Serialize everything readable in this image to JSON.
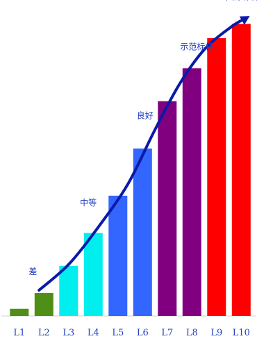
{
  "chart_data": {
    "type": "bar",
    "categories": [
      "L1",
      "L2",
      "L3",
      "L4",
      "L5",
      "L6",
      "L7",
      "L8",
      "L9",
      "L10"
    ],
    "values": [
      0.25,
      0.8,
      1.75,
      2.9,
      4.2,
      5.85,
      7.5,
      8.65,
      9.7,
      10.2
    ],
    "colors": [
      "#4f8f18",
      "#4f8f18",
      "#00eeee",
      "#00eeee",
      "#3366ff",
      "#3366ff",
      "#800080",
      "#800080",
      "#ff0000",
      "#ff0000"
    ],
    "ylim": [
      0,
      10.5
    ],
    "trend": {
      "color": "#0a1aa8",
      "points": [
        [
          0.8,
          0.9
        ],
        [
          2.0,
          1.8
        ],
        [
          3.2,
          3.1
        ],
        [
          4.4,
          4.6
        ],
        [
          5.5,
          6.5
        ],
        [
          6.5,
          8.1
        ],
        [
          7.5,
          9.3
        ],
        [
          8.6,
          10.1
        ],
        [
          9.2,
          10.4
        ]
      ],
      "arrow": true
    },
    "annotations": [
      {
        "text": "差",
        "x": 0.55,
        "y": 1.45
      },
      {
        "text": "中等",
        "x": 2.8,
        "y": 3.85
      },
      {
        "text": "良好",
        "x": 5.1,
        "y": 6.9
      },
      {
        "text": "示范标杆",
        "x": 7.2,
        "y": 9.3
      },
      {
        "text": "国际标杆",
        "x": 9.05,
        "y": 11.05
      }
    ],
    "grid": false
  }
}
